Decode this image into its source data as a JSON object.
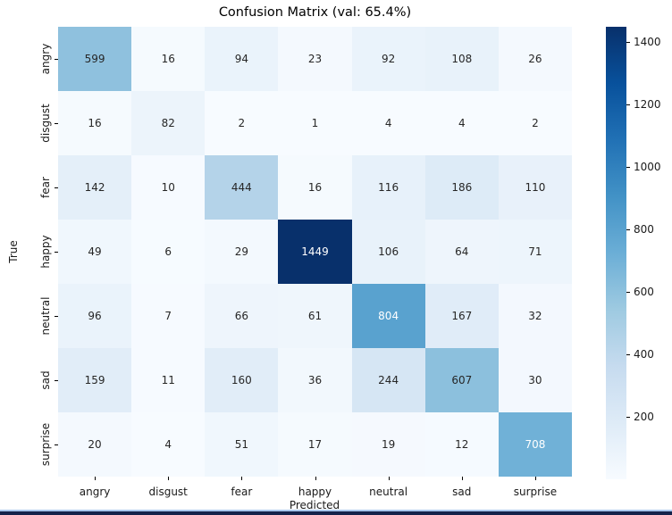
{
  "title": "Confusion Matrix (val: 65.4%)",
  "chart_data": {
    "type": "heatmap",
    "title": "Confusion Matrix (val: 65.4%)",
    "xlabel": "Predicted",
    "ylabel": "True",
    "x_categories": [
      "angry",
      "disgust",
      "fear",
      "happy",
      "neutral",
      "sad",
      "surprise"
    ],
    "y_categories": [
      "angry",
      "disgust",
      "fear",
      "happy",
      "neutral",
      "sad",
      "surprise"
    ],
    "values": [
      [
        599,
        16,
        94,
        23,
        92,
        108,
        26
      ],
      [
        16,
        82,
        2,
        1,
        4,
        4,
        2
      ],
      [
        142,
        10,
        444,
        16,
        116,
        186,
        110
      ],
      [
        49,
        6,
        29,
        1449,
        106,
        64,
        71
      ],
      [
        96,
        7,
        66,
        61,
        804,
        167,
        32
      ],
      [
        159,
        11,
        160,
        36,
        244,
        607,
        30
      ],
      [
        20,
        4,
        51,
        17,
        19,
        12,
        708
      ]
    ],
    "vmin": 1,
    "vmax": 1449,
    "colorbar_ticks": [
      200,
      400,
      600,
      800,
      1000,
      1200,
      1400
    ],
    "colormap": "Blues",
    "colormap_stops": [
      "#f7fbff",
      "#deebf7",
      "#c6dbef",
      "#9ecae1",
      "#6baed6",
      "#4292c6",
      "#2171b5",
      "#08519c",
      "#08306b"
    ],
    "annotation_dark_text_color": "#262626",
    "annotation_light_text_color": "#ffffff",
    "grid": false,
    "legend_position": "right-colorbar"
  },
  "window_edge": {
    "light_color": "#a9c8ee",
    "dark_color": "#15234b"
  }
}
